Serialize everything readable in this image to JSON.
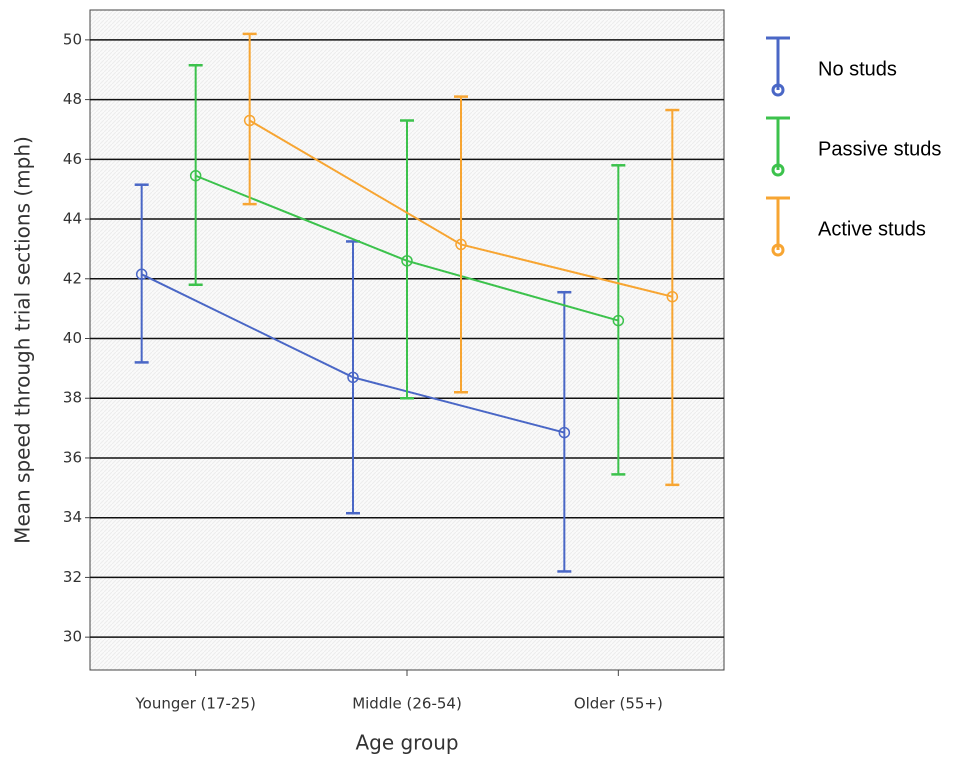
{
  "chart_data": {
    "type": "line",
    "xlabel": "Age group",
    "ylabel": "Mean speed through trial sections (mph)",
    "categories": [
      "Younger (17-25)",
      "Middle (26-54)",
      "Older (55+)"
    ],
    "ylim": [
      28.9,
      51.0
    ],
    "yticks": [
      30,
      32,
      34,
      36,
      38,
      40,
      42,
      44,
      46,
      48,
      50
    ],
    "grid": true,
    "legend": "right",
    "series": [
      {
        "name": "No studs",
        "color": "#4a67c6",
        "values": [
          42.15,
          38.7,
          36.85
        ],
        "lower": [
          39.2,
          34.15,
          32.2
        ],
        "upper": [
          45.15,
          43.25,
          41.55
        ]
      },
      {
        "name": "Passive studs",
        "color": "#3cc24c",
        "values": [
          45.45,
          42.6,
          40.6
        ],
        "lower": [
          41.8,
          38.0,
          35.45
        ],
        "upper": [
          49.15,
          47.3,
          45.8
        ]
      },
      {
        "name": "Active studs",
        "color": "#f7a532",
        "values": [
          47.3,
          43.15,
          41.4
        ],
        "lower": [
          44.5,
          38.2,
          35.1
        ],
        "upper": [
          50.2,
          48.1,
          47.65
        ]
      }
    ]
  }
}
